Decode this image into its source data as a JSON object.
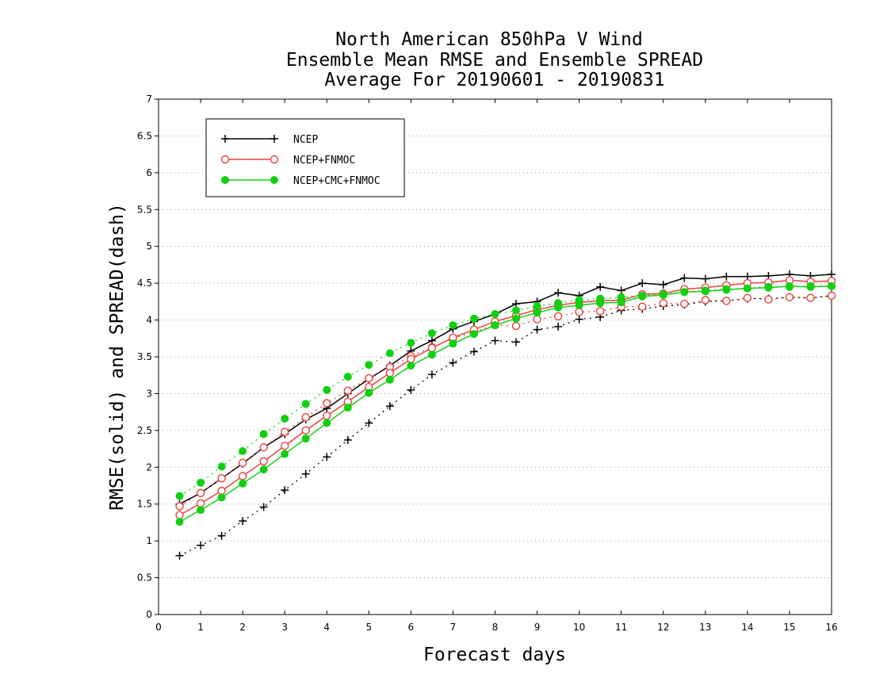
{
  "chart_data": {
    "type": "line",
    "title": [
      "North American 850hPa V Wind",
      "Ensemble Mean RMSE and Ensemble SPREAD",
      "Average For 20190601 - 20190831"
    ],
    "xlabel": "Forecast days",
    "ylabel": "RMSE(solid) and SPREAD(dash)",
    "xlim": [
      0,
      16
    ],
    "ylim": [
      0,
      7
    ],
    "xticks": [
      0,
      1,
      2,
      3,
      4,
      5,
      6,
      7,
      8,
      9,
      10,
      11,
      12,
      13,
      14,
      15,
      16
    ],
    "yticks": [
      0,
      0.5,
      1,
      1.5,
      2,
      2.5,
      3,
      3.5,
      4,
      4.5,
      5,
      5.5,
      6,
      6.5,
      7
    ],
    "ytick_labels": [
      "0",
      "0.5",
      "1",
      "1.5",
      "2",
      "2.5",
      "3",
      "3.5",
      "4",
      "4.5",
      "5",
      "5.5",
      "6",
      "6.5",
      "7"
    ],
    "grid": "horizontal dotted",
    "legend_position": "top-left",
    "x": [
      0.5,
      1.0,
      1.5,
      2.0,
      2.5,
      3.0,
      3.5,
      4.0,
      4.5,
      5.0,
      5.5,
      6.0,
      6.5,
      7.0,
      7.5,
      8.0,
      8.5,
      9.0,
      9.5,
      10.0,
      10.5,
      11.0,
      11.5,
      12.0,
      12.5,
      13.0,
      13.5,
      14.0,
      14.5,
      15.0,
      15.5,
      16.0
    ],
    "series": [
      {
        "name": "NCEP",
        "color": "#000000",
        "marker": "plus",
        "rmse": [
          1.5,
          1.65,
          1.85,
          2.05,
          2.27,
          2.45,
          2.65,
          2.8,
          3.0,
          3.2,
          3.38,
          3.58,
          3.72,
          3.88,
          3.98,
          4.08,
          4.22,
          4.25,
          4.37,
          4.33,
          4.45,
          4.4,
          4.5,
          4.48,
          4.57,
          4.56,
          4.59,
          4.59,
          4.6,
          4.62,
          4.6,
          4.62
        ],
        "spread": [
          0.8,
          0.94,
          1.07,
          1.27,
          1.46,
          1.69,
          1.91,
          2.14,
          2.37,
          2.6,
          2.83,
          3.05,
          3.26,
          3.42,
          3.57,
          3.72,
          3.7,
          3.87,
          3.91,
          4.01,
          4.04,
          4.13,
          4.15,
          4.19,
          4.21,
          4.25,
          4.26,
          4.29,
          4.29,
          4.31,
          4.3,
          4.33
        ]
      },
      {
        "name": "NCEP+FNMOC",
        "color": "#e8413c",
        "marker": "open-circle",
        "rmse": [
          1.35,
          1.51,
          1.68,
          1.88,
          2.08,
          2.29,
          2.5,
          2.7,
          2.89,
          3.09,
          3.28,
          3.47,
          3.62,
          3.76,
          3.87,
          3.98,
          4.06,
          4.14,
          4.2,
          4.24,
          4.26,
          4.27,
          4.35,
          4.36,
          4.42,
          4.44,
          4.47,
          4.5,
          4.51,
          4.54,
          4.52,
          4.53
        ],
        "spread": [
          1.47,
          1.65,
          1.85,
          2.06,
          2.27,
          2.48,
          2.68,
          2.87,
          3.04,
          3.21,
          3.36,
          3.51,
          3.63,
          3.75,
          3.84,
          3.93,
          3.92,
          4.01,
          4.05,
          4.11,
          4.12,
          4.18,
          4.18,
          4.23,
          4.22,
          4.27,
          4.26,
          4.3,
          4.28,
          4.31,
          4.3,
          4.33
        ]
      },
      {
        "name": "NCEP+CMC+FNMOC",
        "color": "#11d011",
        "marker": "filled-circle",
        "rmse": [
          1.26,
          1.42,
          1.59,
          1.78,
          1.97,
          2.18,
          2.39,
          2.6,
          2.81,
          3.01,
          3.19,
          3.38,
          3.53,
          3.68,
          3.81,
          3.93,
          4.02,
          4.1,
          4.17,
          4.2,
          4.23,
          4.24,
          4.32,
          4.34,
          4.38,
          4.39,
          4.41,
          4.43,
          4.44,
          4.46,
          4.45,
          4.46
        ],
        "spread": [
          1.61,
          1.79,
          2.01,
          2.22,
          2.45,
          2.66,
          2.86,
          3.05,
          3.23,
          3.39,
          3.55,
          3.69,
          3.82,
          3.93,
          4.02,
          4.08,
          4.13,
          4.19,
          4.23,
          4.27,
          4.29,
          4.31,
          4.33,
          4.35,
          4.38,
          4.4,
          4.42,
          4.43,
          4.45,
          4.45,
          4.46,
          4.46
        ]
      }
    ]
  }
}
